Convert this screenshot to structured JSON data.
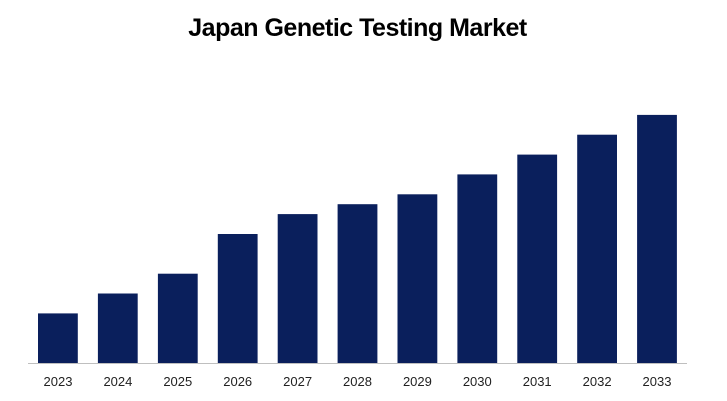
{
  "chart_data": {
    "type": "bar",
    "title": "Japan Genetic Testing Market",
    "xlabel": "",
    "ylabel": "",
    "categories": [
      "2023",
      "2024",
      "2025",
      "2026",
      "2027",
      "2028",
      "2029",
      "2030",
      "2031",
      "2032",
      "2033"
    ],
    "values": [
      2.0,
      2.8,
      3.6,
      5.2,
      6.0,
      6.4,
      6.8,
      7.6,
      8.4,
      9.2,
      10.0
    ],
    "ylim": [
      0,
      10.6
    ],
    "grid": false,
    "legend": "none",
    "y_axis_visible": false,
    "bar_color": "#0a1f5c",
    "axis_color": "#bfbfbf"
  }
}
